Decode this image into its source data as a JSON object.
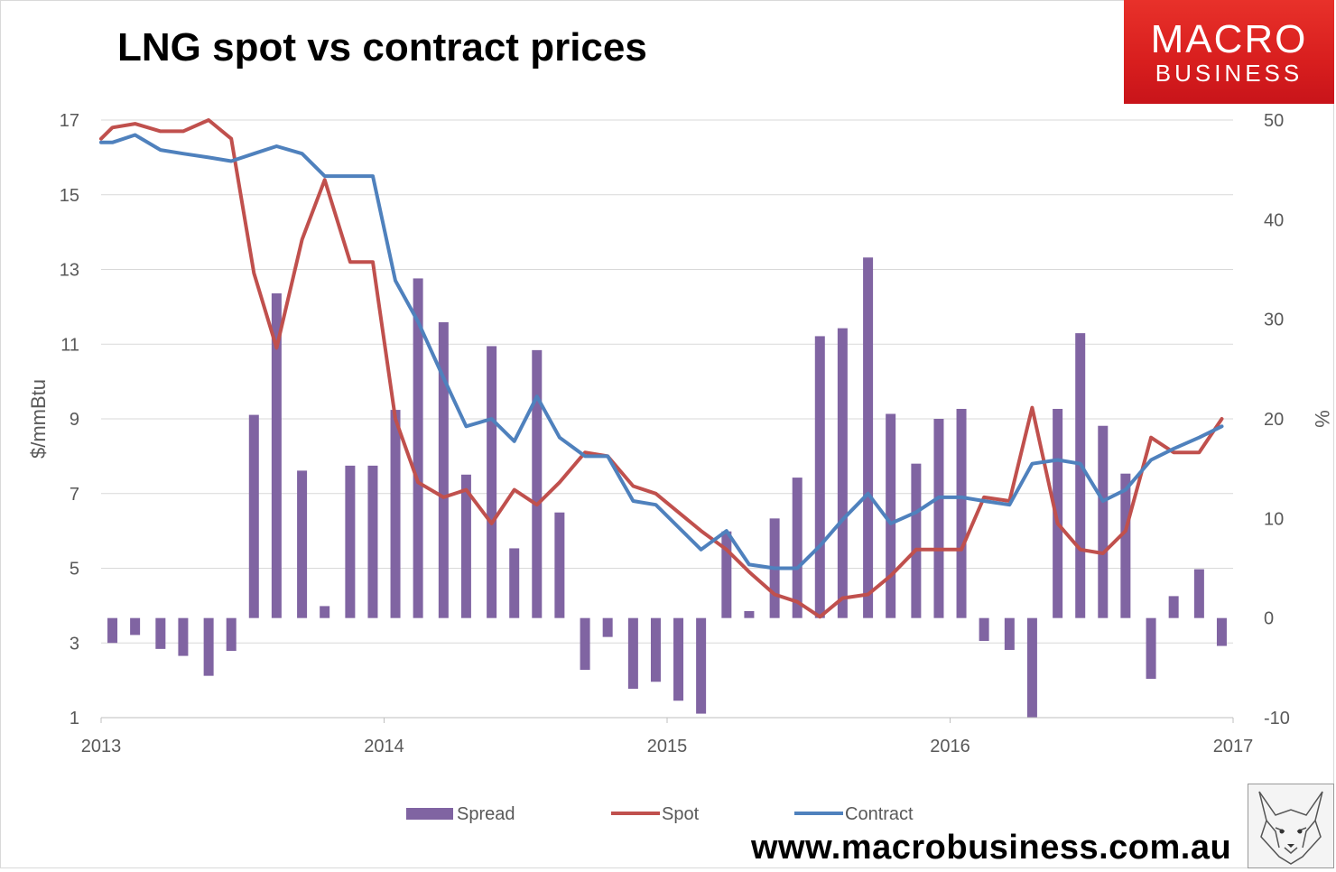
{
  "title": "LNG spot vs contract prices",
  "logo": {
    "line1": "MACRO",
    "line2": "BUSINESS"
  },
  "website": "www.macrobusiness.com.au",
  "colors": {
    "spread": "#8064a2",
    "spot": "#c0504d",
    "contract": "#4f81bd",
    "logo_bg": "#e02a24",
    "grid": "#d9d9d9"
  },
  "chart_data": {
    "type": "bar+line",
    "title": "LNG spot vs contract prices",
    "y_left": {
      "label": "$/mmBtu",
      "range": [
        1,
        17
      ],
      "ticks": [
        "1",
        "3",
        "5",
        "7",
        "9",
        "11",
        "13",
        "15",
        "17"
      ]
    },
    "y_right": {
      "label": "%",
      "range": [
        -10,
        50
      ],
      "ticks": [
        "-10",
        "0",
        "10",
        "20",
        "30",
        "40",
        "50"
      ]
    },
    "x": {
      "range": [
        2013,
        2017
      ],
      "ticks": [
        "2013",
        "2014",
        "2015",
        "2016",
        "2017"
      ]
    },
    "legend": [
      "Spread",
      "Spot",
      "Contract"
    ],
    "legend_position": "bottom",
    "spread_x": [
      2013.04,
      2013.12,
      2013.21,
      2013.29,
      2013.38,
      2013.46,
      2013.54,
      2013.62,
      2013.71,
      2013.79,
      2013.88,
      2013.96,
      2014.04,
      2014.12,
      2014.21,
      2014.29,
      2014.38,
      2014.46,
      2014.54,
      2014.62,
      2014.71,
      2014.79,
      2014.88,
      2014.96,
      2015.04,
      2015.12,
      2015.21,
      2015.29,
      2015.38,
      2015.46,
      2015.54,
      2015.62,
      2015.71,
      2015.79,
      2015.88,
      2015.96,
      2016.04,
      2016.12,
      2016.21,
      2016.29,
      2016.38,
      2016.46,
      2016.54,
      2016.62,
      2016.71,
      2016.79,
      2016.88,
      2016.96
    ],
    "series": [
      {
        "name": "Spread",
        "axis": "right",
        "type": "bar",
        "values": [
          -2.5,
          -1.7,
          -3.1,
          -3.8,
          -5.8,
          -3.3,
          20.4,
          32.6,
          14.8,
          1.2,
          15.3,
          15.3,
          20.9,
          34.1,
          29.7,
          14.4,
          27.3,
          7.0,
          26.9,
          10.6,
          -5.2,
          -1.9,
          -7.1,
          -6.4,
          -8.3,
          -9.6,
          8.7,
          0.7,
          10.0,
          14.1,
          28.3,
          29.1,
          36.2,
          20.5,
          15.5,
          20.0,
          21.0,
          -2.3,
          -3.2,
          -10.0,
          21.0,
          28.6,
          19.3,
          14.5,
          -6.1,
          2.2,
          4.9,
          -2.8
        ]
      },
      {
        "name": "Spot",
        "axis": "left",
        "type": "line",
        "x": [
          2013.0,
          2013.04,
          2013.12,
          2013.21,
          2013.29,
          2013.38,
          2013.46,
          2013.54,
          2013.62,
          2013.71,
          2013.79,
          2013.88,
          2013.96,
          2014.04,
          2014.12,
          2014.21,
          2014.29,
          2014.38,
          2014.46,
          2014.54,
          2014.62,
          2014.71,
          2014.79,
          2014.88,
          2014.96,
          2015.04,
          2015.12,
          2015.21,
          2015.29,
          2015.38,
          2015.46,
          2015.54,
          2015.62,
          2015.71,
          2015.79,
          2015.88,
          2015.96,
          2016.04,
          2016.12,
          2016.21,
          2016.29,
          2016.38,
          2016.46,
          2016.54,
          2016.62,
          2016.71,
          2016.79,
          2016.88,
          2016.96
        ],
        "values": [
          16.5,
          16.8,
          16.9,
          16.7,
          16.7,
          17.0,
          16.5,
          12.9,
          10.9,
          13.8,
          15.4,
          13.2,
          13.2,
          9.0,
          7.3,
          6.9,
          7.1,
          6.2,
          7.1,
          6.7,
          7.3,
          8.1,
          8.0,
          7.2,
          7.0,
          6.5,
          6.0,
          5.5,
          4.9,
          4.3,
          4.1,
          3.7,
          4.2,
          4.3,
          4.8,
          5.5,
          5.5,
          5.5,
          6.9,
          6.8,
          9.3,
          6.2,
          5.5,
          5.4,
          6.0,
          8.5,
          8.1,
          8.1,
          9.0
        ]
      },
      {
        "name": "Contract",
        "axis": "left",
        "type": "line",
        "x": [
          2013.0,
          2013.04,
          2013.12,
          2013.21,
          2013.29,
          2013.38,
          2013.46,
          2013.54,
          2013.62,
          2013.71,
          2013.79,
          2013.88,
          2013.96,
          2014.04,
          2014.12,
          2014.21,
          2014.29,
          2014.38,
          2014.46,
          2014.54,
          2014.62,
          2014.71,
          2014.79,
          2014.88,
          2014.96,
          2015.04,
          2015.12,
          2015.21,
          2015.29,
          2015.38,
          2015.46,
          2015.54,
          2015.62,
          2015.71,
          2015.79,
          2015.88,
          2015.96,
          2016.04,
          2016.12,
          2016.21,
          2016.29,
          2016.38,
          2016.46,
          2016.54,
          2016.62,
          2016.71,
          2016.79,
          2016.88,
          2016.96
        ],
        "values": [
          16.4,
          16.4,
          16.6,
          16.2,
          16.1,
          16.0,
          15.9,
          16.1,
          16.3,
          16.1,
          15.5,
          15.5,
          15.5,
          12.7,
          11.6,
          10.1,
          8.8,
          9.0,
          8.4,
          9.6,
          8.5,
          8.0,
          8.0,
          6.8,
          6.7,
          6.1,
          5.5,
          6.0,
          5.1,
          5.0,
          5.0,
          5.6,
          6.3,
          7.0,
          6.2,
          6.5,
          6.9,
          6.9,
          6.8,
          6.7,
          7.8,
          7.9,
          7.8,
          6.8,
          7.1,
          7.9,
          8.2,
          8.5,
          8.8
        ]
      }
    ]
  }
}
